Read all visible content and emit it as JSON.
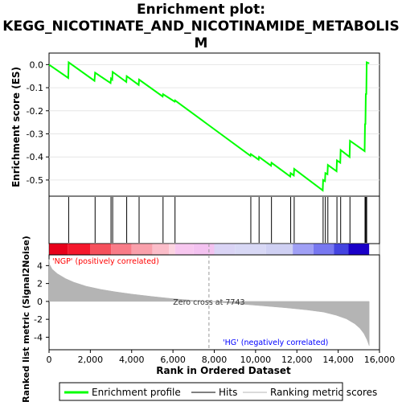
{
  "title_line1": "Enrichment plot:",
  "title_line2": "KEGG_NICOTINATE_AND_NICOTINAMIDE_METABOLIS",
  "title_line3": "M",
  "colors": {
    "es_line": "#00ff00",
    "hit": "#000000",
    "metric_fill": "#b4b4b4",
    "pos_label": "#ff0000",
    "neg_label": "#0000ff",
    "zero_cross": "#999999"
  },
  "chart_data": [
    {
      "type": "line",
      "ylabel": "Enrichment score (ES)",
      "xlim": [
        0,
        16000
      ],
      "ylim": [
        -0.57,
        0.05
      ],
      "yticks": [
        "0.0",
        "-0.1",
        "-0.2",
        "-0.3",
        "-0.4",
        "-0.5"
      ],
      "ytick_values": [
        0.0,
        -0.1,
        -0.2,
        -0.3,
        -0.4,
        -0.5
      ],
      "series": [
        {
          "name": "Enrichment profile",
          "x": [
            0,
            930,
            950,
            2200,
            2230,
            2980,
            3000,
            3060,
            3080,
            3740,
            3760,
            4340,
            4360,
            5500,
            5520,
            6080,
            6100,
            9750,
            9770,
            10150,
            10170,
            10750,
            10770,
            11680,
            11700,
            11850,
            11870,
            13250,
            13270,
            13360,
            13380,
            13480,
            13500,
            13920,
            13940,
            14100,
            14120,
            14550,
            14570,
            15280,
            15300,
            15320,
            15340,
            15360,
            15380,
            15500
          ],
          "y": [
            0.0,
            -0.058,
            0.01,
            -0.07,
            -0.035,
            -0.08,
            -0.06,
            -0.065,
            -0.032,
            -0.075,
            -0.05,
            -0.088,
            -0.065,
            -0.138,
            -0.128,
            -0.16,
            -0.155,
            -0.395,
            -0.388,
            -0.412,
            -0.4,
            -0.438,
            -0.425,
            -0.485,
            -0.47,
            -0.48,
            -0.452,
            -0.545,
            -0.5,
            -0.505,
            -0.47,
            -0.475,
            -0.435,
            -0.462,
            -0.415,
            -0.425,
            -0.37,
            -0.4,
            -0.33,
            -0.375,
            -0.255,
            -0.26,
            -0.125,
            -0.13,
            0.01,
            0.005
          ]
        }
      ]
    },
    {
      "type": "scatter",
      "name": "Hits",
      "xlim": [
        0,
        16000
      ],
      "x": [
        950,
        2230,
        3000,
        3080,
        3760,
        4360,
        5520,
        6100,
        9770,
        10170,
        10770,
        11700,
        11870,
        13270,
        13380,
        13500,
        13940,
        14120,
        14570,
        15300,
        15340,
        15380
      ]
    },
    {
      "type": "heatmap",
      "name": "Ranking bar",
      "xlim": [
        0,
        16000
      ],
      "x": [
        0,
        900,
        2000,
        3000,
        4000,
        5000,
        5800,
        6100,
        7000,
        8000,
        9000,
        10500,
        11800,
        12800,
        13800,
        14500,
        15500
      ],
      "colors": [
        "#e8001a",
        "#f5182c",
        "#f5505c",
        "#f87c88",
        "#f9a0ab",
        "#fbbdc9",
        "#fcd4e0",
        "#f7c7ef",
        "#f3c2f0",
        "#dad4f5",
        "#d8d8f5",
        "#cfd0f3",
        "#a0a0f5",
        "#7878f0",
        "#4444e0",
        "#1a00c8"
      ]
    },
    {
      "type": "area",
      "name": "Ranking metric scores",
      "xlabel": "Rank in Ordered Dataset",
      "ylabel": "Ranked list metric (Signal2Noise)",
      "xlim": [
        0,
        16000
      ],
      "ylim": [
        -5.4,
        5.2
      ],
      "xticks": [
        "0",
        "2,000",
        "4,000",
        "6,000",
        "8,000",
        "10,000",
        "12,000",
        "14,000",
        "16,000"
      ],
      "xtick_values": [
        0,
        2000,
        4000,
        6000,
        8000,
        10000,
        12000,
        14000,
        16000
      ],
      "yticks": [
        "4",
        "2",
        "0",
        "-2",
        "-4"
      ],
      "ytick_values": [
        4,
        2,
        0,
        -2,
        -4
      ],
      "x": [
        0,
        30,
        150,
        400,
        800,
        1200,
        1800,
        2500,
        3200,
        4000,
        5000,
        6000,
        7000,
        7743,
        8500,
        9500,
        10500,
        11500,
        12500,
        13300,
        13900,
        14400,
        14800,
        15050,
        15250,
        15400,
        15500
      ],
      "values": [
        4.7,
        4.1,
        3.6,
        3.1,
        2.55,
        2.15,
        1.7,
        1.35,
        1.08,
        0.82,
        0.55,
        0.3,
        0.12,
        0.0,
        -0.15,
        -0.33,
        -0.52,
        -0.72,
        -0.95,
        -1.2,
        -1.55,
        -1.95,
        -2.5,
        -3.0,
        -3.6,
        -4.3,
        -4.95
      ],
      "annotations": {
        "pos": "'NGP' (positively correlated)",
        "neg": "'HG' (negatively correlated)",
        "zero": "Zero cross at 7743",
        "zero_x": 7743
      }
    }
  ],
  "legend": {
    "items": [
      {
        "label": "Enrichment profile",
        "color": "#00ff00"
      },
      {
        "label": "Hits",
        "color": "#000000"
      },
      {
        "label": "Ranking metric scores",
        "color": "#b4b4b4"
      }
    ]
  }
}
